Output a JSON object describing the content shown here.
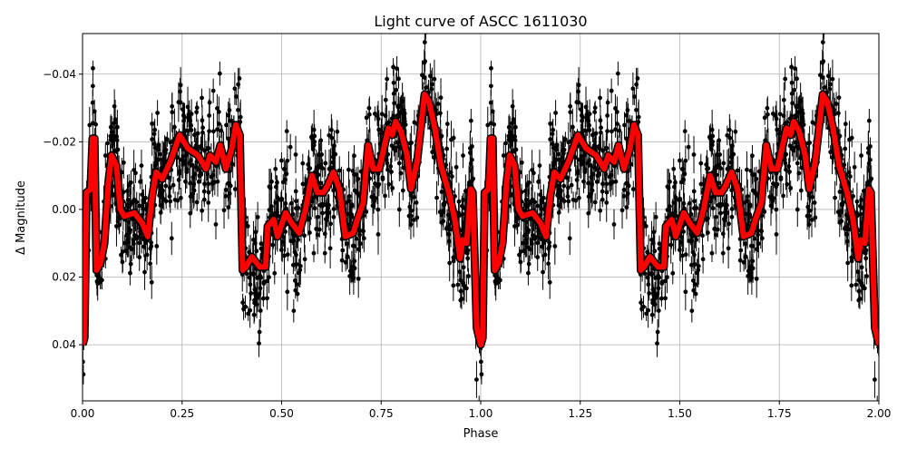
{
  "chart_data": {
    "type": "scatter",
    "title": "Light curve of ASCC 1611030",
    "xlabel": "Phase",
    "ylabel": "Δ Magnitude",
    "xlim": [
      0,
      2
    ],
    "ylim": [
      -0.052,
      0.0566
    ],
    "y_inverted": true,
    "grid": true,
    "x_ticks": [
      "0.00",
      "0.25",
      "0.50",
      "0.75",
      "1.00",
      "1.25",
      "1.50",
      "1.75",
      "2.00"
    ],
    "x_tick_values": [
      0,
      0.25,
      0.5,
      0.75,
      1,
      1.25,
      1.5,
      1.75,
      2
    ],
    "y_ticks": [
      "−0.04",
      "−0.02",
      "0.00",
      "0.02",
      "0.04"
    ],
    "y_tick_values": [
      -0.04,
      -0.02,
      0,
      0.02,
      0.04
    ],
    "colors": {
      "points": "#000000",
      "model": "#ff0000"
    },
    "model_period": 1,
    "model_curve": {
      "phase": [
        0,
        0.005,
        0.01,
        0.02,
        0.025,
        0.03,
        0.035,
        0.045,
        0.055,
        0.065,
        0.073,
        0.085,
        0.095,
        0.105,
        0.13,
        0.15,
        0.164,
        0.175,
        0.185,
        0.2,
        0.22,
        0.244,
        0.265,
        0.29,
        0.31,
        0.32,
        0.335,
        0.346,
        0.36,
        0.375,
        0.385,
        0.395,
        0.402,
        0.41,
        0.425,
        0.445,
        0.46,
        0.465,
        0.48,
        0.49,
        0.51,
        0.525,
        0.544,
        0.56,
        0.576,
        0.59,
        0.605,
        0.615,
        0.63,
        0.645,
        0.66,
        0.68,
        0.69,
        0.705,
        0.717,
        0.73,
        0.745,
        0.768,
        0.778,
        0.786,
        0.8,
        0.815,
        0.825,
        0.84,
        0.859,
        0.87,
        0.885,
        0.9,
        0.92,
        0.935,
        0.948,
        0.955,
        0.965,
        0.975,
        0.98,
        0.99,
        1.0
      ],
      "magnitude": [
        0.04,
        0.038,
        -0.005,
        -0.006,
        -0.021,
        -0.021,
        0.018,
        0.016,
        0.01,
        -0.008,
        -0.016,
        -0.013,
        0.0,
        0.002,
        0.001,
        0.004,
        0.008,
        -0.004,
        -0.011,
        -0.009,
        -0.014,
        -0.022,
        -0.018,
        -0.016,
        -0.012,
        -0.016,
        -0.014,
        -0.019,
        -0.012,
        -0.018,
        -0.025,
        -0.022,
        0.018,
        0.017,
        0.014,
        0.017,
        0.017,
        0.005,
        0.003,
        0.008,
        0.001,
        0.004,
        0.007,
        0.0,
        -0.01,
        -0.005,
        -0.005,
        -0.007,
        -0.011,
        -0.006,
        0.008,
        0.007,
        0.003,
        -0.002,
        -0.019,
        -0.012,
        -0.012,
        -0.024,
        -0.022,
        -0.026,
        -0.023,
        -0.016,
        -0.006,
        -0.014,
        -0.034,
        -0.032,
        -0.024,
        -0.013,
        -0.005,
        0.003,
        0.0145,
        0.009,
        0.01,
        -0.006,
        -0.005,
        0.035,
        0.04
      ]
    }
  }
}
